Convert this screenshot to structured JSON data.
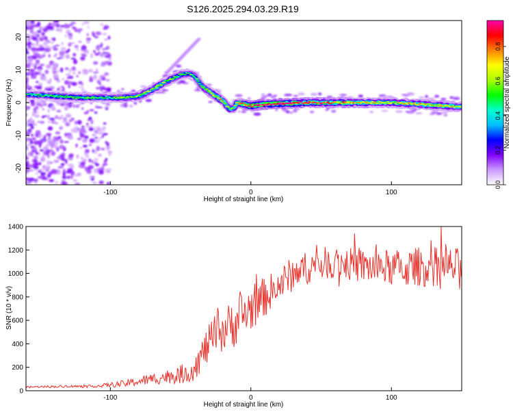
{
  "title": "S126.2025.294.03.29.R19",
  "chart_data": [
    {
      "type": "heatmap",
      "xlabel": "Height of straight line (km)",
      "ylabel": "Frequency (Hz)",
      "xlim": [
        -160,
        150
      ],
      "ylim": [
        -25,
        25
      ],
      "x_ticks": [
        -100,
        0,
        100
      ],
      "y_ticks": [
        -20,
        -10,
        0,
        10,
        20
      ],
      "grid": false,
      "colorbar": {
        "label": "Normalized spectral amplitude",
        "range": [
          0,
          0.95
        ],
        "ticks": [
          0.0,
          0.2,
          0.4,
          0.6,
          0.8
        ],
        "colors": [
          "#ffffff",
          "#cc99ff",
          "#7f00ff",
          "#0000ff",
          "#00bfff",
          "#00ffcc",
          "#00ff00",
          "#aaff00",
          "#ffff00",
          "#ff8000",
          "#ff0000",
          "#ff00aa"
        ]
      },
      "ridge": {
        "x": [
          -160,
          -140,
          -120,
          -100,
          -90,
          -80,
          -70,
          -60,
          -50,
          -45,
          -40,
          -35,
          -30,
          -25,
          -20,
          -15,
          -12,
          -10,
          -5,
          0,
          10,
          20,
          40,
          60,
          80,
          100,
          120,
          140,
          150
        ],
        "y": [
          2.5,
          2,
          1.5,
          1.5,
          1.5,
          2,
          4,
          6.5,
          8.5,
          9,
          8,
          5,
          3.5,
          2,
          0.5,
          -2,
          -1.5,
          0,
          -0.5,
          -1,
          -0.5,
          -0.3,
          0,
          0,
          0,
          0,
          -0.5,
          -1,
          -1.2
        ],
        "amplitude": [
          0.45,
          0.5,
          0.5,
          0.5,
          0.55,
          0.6,
          0.65,
          0.6,
          0.55,
          0.5,
          0.55,
          0.55,
          0.65,
          0.7,
          0.7,
          0.6,
          0.65,
          0.75,
          0.8,
          0.85,
          0.9,
          0.95,
          0.85,
          0.8,
          0.7,
          0.65,
          0.7,
          0.7,
          0.65
        ]
      }
    },
    {
      "type": "line",
      "xlabel": "Height of straight line (km)",
      "ylabel": "SNR (10 * v/v)",
      "xlim": [
        -160,
        150
      ],
      "ylim": [
        0,
        1400
      ],
      "x_ticks": [
        -100,
        0,
        100
      ],
      "y_ticks": [
        0,
        200,
        400,
        600,
        800,
        1000,
        1200,
        1400
      ],
      "grid": false,
      "series": [
        {
          "color": "#e8302a",
          "x": [
            -160,
            -150,
            -140,
            -130,
            -120,
            -110,
            -100,
            -90,
            -80,
            -70,
            -60,
            -50,
            -45,
            -40,
            -35,
            -30,
            -25,
            -20,
            -15,
            -10,
            -5,
            0,
            5,
            10,
            20,
            30,
            40,
            50,
            60,
            70,
            80,
            90,
            100,
            110,
            120,
            130,
            140,
            150
          ],
          "y": [
            30,
            35,
            35,
            40,
            35,
            40,
            50,
            60,
            80,
            100,
            120,
            140,
            150,
            200,
            300,
            400,
            480,
            520,
            550,
            600,
            650,
            700,
            760,
            800,
            900,
            1000,
            1050,
            1080,
            1100,
            1080,
            1060,
            1050,
            1050,
            1040,
            1060,
            1060,
            1050,
            1050
          ],
          "noise": [
            8,
            8,
            10,
            10,
            10,
            12,
            20,
            30,
            40,
            50,
            60,
            80,
            90,
            110,
            140,
            160,
            180,
            200,
            200,
            220,
            220,
            200,
            180,
            170,
            150,
            150,
            140,
            140,
            140,
            140,
            150,
            150,
            160,
            160,
            170,
            170,
            170,
            170
          ]
        }
      ]
    }
  ]
}
